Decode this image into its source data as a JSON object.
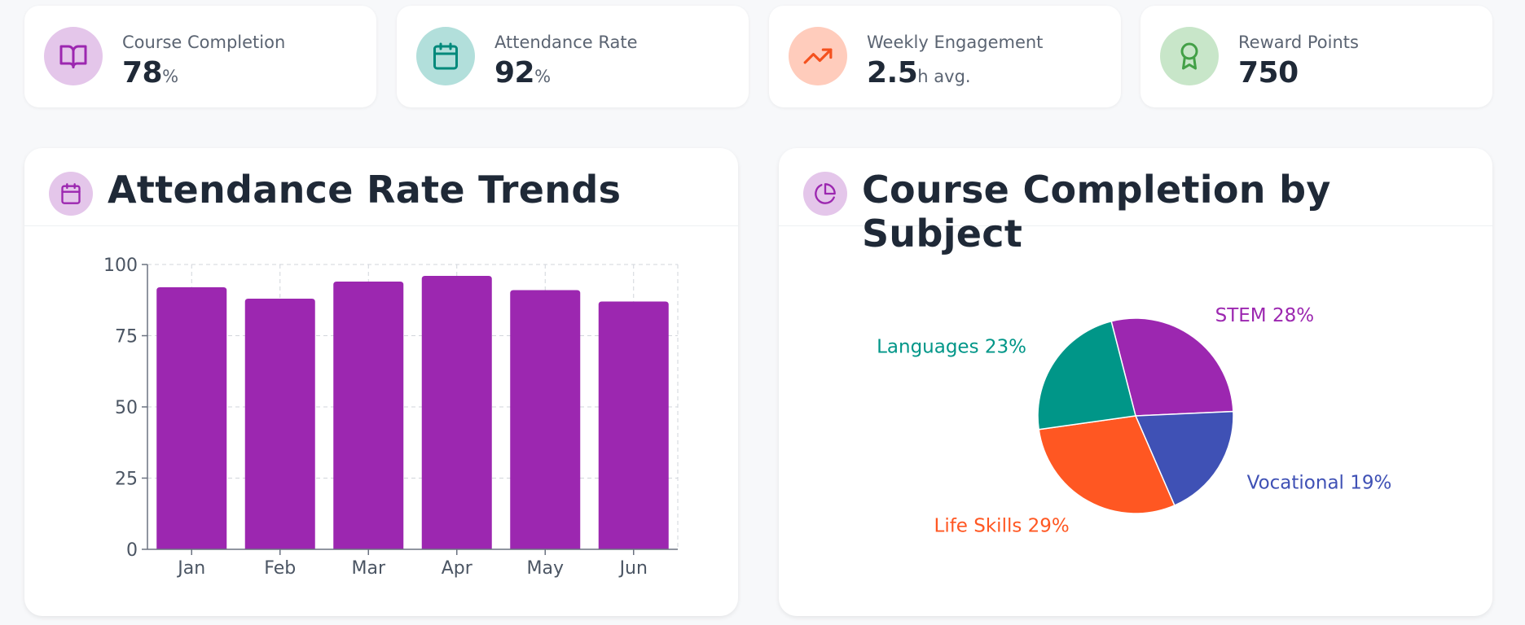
{
  "stats": [
    {
      "label": "Course Completion",
      "value": "78",
      "unit": "%",
      "icon": "book-open-icon",
      "icon_bg": "#e4c6ea",
      "icon_color": "#9c27b0"
    },
    {
      "label": "Attendance Rate",
      "value": "92",
      "unit": "%",
      "icon": "calendar-icon",
      "icon_bg": "#b2dfdb",
      "icon_color": "#00897b"
    },
    {
      "label": "Weekly Engagement",
      "value": "2.5",
      "unit": "h avg.",
      "icon": "trending-up-icon",
      "icon_bg": "#ffccbc",
      "icon_color": "#f4511e"
    },
    {
      "label": "Reward Points",
      "value": "750",
      "unit": "",
      "icon": "award-icon",
      "icon_bg": "#c8e6c9",
      "icon_color": "#43a047"
    }
  ],
  "attendance_panel": {
    "title": "Attendance Rate Trends",
    "icon": "calendar-icon"
  },
  "completion_panel": {
    "title": "Course Completion by Subject",
    "icon": "pie-chart-icon"
  },
  "chart_data": [
    {
      "type": "bar",
      "title": "Attendance Rate Trends",
      "categories": [
        "Jan",
        "Feb",
        "Mar",
        "Apr",
        "May",
        "Jun"
      ],
      "values": [
        92,
        88,
        94,
        96,
        91,
        87
      ],
      "xlabel": "",
      "ylabel": "",
      "ylim": [
        0,
        100
      ],
      "yticks": [
        0,
        25,
        50,
        75,
        100
      ],
      "grid": true,
      "color": "#9c27b0"
    },
    {
      "type": "pie",
      "title": "Course Completion by Subject",
      "slices": [
        {
          "label": "STEM",
          "value": 28,
          "display": "STEM 28%",
          "color": "#9c27b0"
        },
        {
          "label": "Vocational",
          "value": 19,
          "display": "Vocational 19%",
          "color": "#3f51b5"
        },
        {
          "label": "Life Skills",
          "value": 29,
          "display": "Life Skills 29%",
          "color": "#ff5722"
        },
        {
          "label": "Languages",
          "value": 23,
          "display": "Languages 23%",
          "color": "#009688"
        }
      ]
    }
  ]
}
